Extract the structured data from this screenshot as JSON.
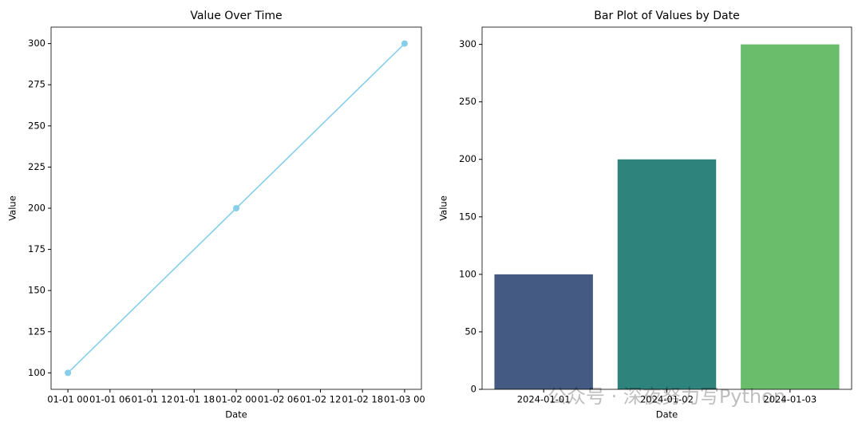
{
  "chart_data": [
    {
      "type": "line",
      "title": "Value Over Time",
      "xlabel": "Date",
      "ylabel": "Value",
      "x": [
        "01-01 00",
        "01-02 00",
        "01-03 00"
      ],
      "values": [
        100,
        200,
        300
      ],
      "color": "#87ceeb",
      "xticks": [
        "01-01 00",
        "01-01 06",
        "01-01 12",
        "01-01 18",
        "01-02 00",
        "01-02 06",
        "01-02 12",
        "01-02 18",
        "01-03 00"
      ],
      "ylim": [
        90,
        310
      ],
      "yticks": [
        100,
        125,
        150,
        175,
        200,
        225,
        250,
        275,
        300
      ]
    },
    {
      "type": "bar",
      "title": "Bar Plot of Values by Date",
      "xlabel": "Date",
      "ylabel": "Value",
      "categories": [
        "2024-01-01",
        "2024-01-02",
        "2024-01-03"
      ],
      "values": [
        100,
        200,
        300
      ],
      "colors": [
        "#455a82",
        "#2e837c",
        "#6abd6b"
      ],
      "ylim": [
        0,
        315
      ],
      "yticks": [
        0,
        50,
        100,
        150,
        200,
        250,
        300
      ]
    }
  ],
  "watermark": "公众号 · 深夜努力写Python"
}
